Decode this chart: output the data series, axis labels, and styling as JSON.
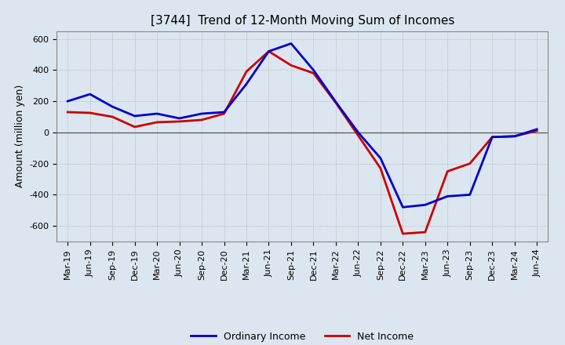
{
  "title": "[3744]  Trend of 12-Month Moving Sum of Incomes",
  "ylabel": "Amount (million yen)",
  "x_labels": [
    "Mar-19",
    "Jun-19",
    "Sep-19",
    "Dec-19",
    "Mar-20",
    "Jun-20",
    "Sep-20",
    "Dec-20",
    "Mar-21",
    "Jun-21",
    "Sep-21",
    "Dec-21",
    "Mar-22",
    "Jun-22",
    "Sep-22",
    "Dec-22",
    "Mar-23",
    "Jun-23",
    "Sep-23",
    "Dec-23",
    "Mar-24",
    "Jun-24"
  ],
  "ordinary_income": [
    200,
    245,
    165,
    105,
    120,
    90,
    120,
    130,
    310,
    520,
    570,
    400,
    195,
    0,
    -165,
    -480,
    -465,
    -410,
    -400,
    -30,
    -25,
    20
  ],
  "net_income": [
    130,
    125,
    100,
    35,
    65,
    70,
    80,
    120,
    390,
    520,
    430,
    380,
    190,
    -20,
    -230,
    -650,
    -640,
    -250,
    -200,
    -30,
    -25,
    10
  ],
  "ordinary_color": "#0000cc",
  "net_color": "#cc0000",
  "ylim": [
    -700,
    650
  ],
  "yticks": [
    -600,
    -400,
    -200,
    0,
    200,
    400,
    600
  ],
  "bg_color": "#dce6f0",
  "plot_bg_color": "#dce6f0",
  "grid_color": "#aaaaaa",
  "line_width": 2.0,
  "title_fontsize": 11,
  "tick_fontsize": 8,
  "ylabel_fontsize": 9,
  "legend_fontsize": 9
}
